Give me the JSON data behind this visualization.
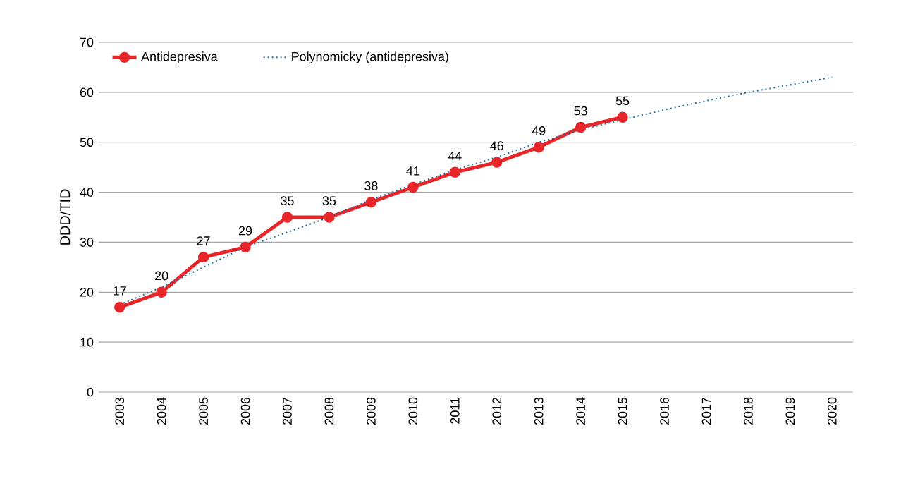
{
  "chart_data": {
    "type": "line",
    "ylabel": "DDD/TID",
    "categories": [
      "2003",
      "2004",
      "2005",
      "2006",
      "2007",
      "2008",
      "2009",
      "2010",
      "2011",
      "2012",
      "2013",
      "2014",
      "2015",
      "2016",
      "2017",
      "2018",
      "2019",
      "2020"
    ],
    "series": [
      {
        "name": "Antidepresiva",
        "color": "#e8262a",
        "marker": "circle",
        "line_style": "solid",
        "values": [
          17,
          20,
          27,
          29,
          35,
          35,
          38,
          41,
          44,
          46,
          49,
          53,
          55,
          null,
          null,
          null,
          null,
          null
        ],
        "value_labels": [
          "17",
          "20",
          "27",
          "29",
          "35",
          "35",
          "38",
          "41",
          "44",
          "46",
          "49",
          "53",
          "55",
          null,
          null,
          null,
          null,
          null
        ]
      },
      {
        "name": "Polynomicky (antidepresiva)",
        "color": "#1f6fa0",
        "marker": "none",
        "line_style": "dotted",
        "values": [
          17.5,
          21,
          25,
          29,
          32,
          35,
          38.5,
          41.5,
          44.5,
          47,
          50,
          52.5,
          54.5,
          56.5,
          58.3,
          60,
          61.5,
          63
        ]
      }
    ],
    "ylim": [
      0,
      70
    ],
    "yticks": [
      0,
      10,
      20,
      30,
      40,
      50,
      60,
      70
    ],
    "grid": "y",
    "legend": "top left"
  }
}
